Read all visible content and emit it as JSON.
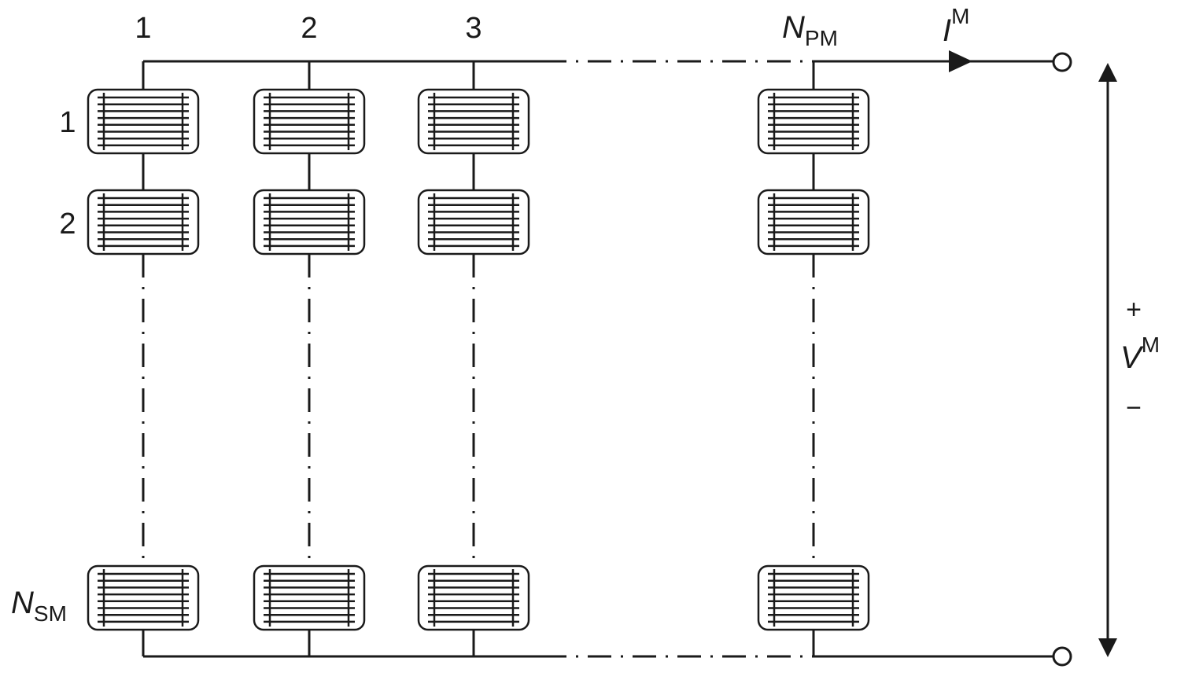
{
  "column_labels": [
    "1",
    "2",
    "3"
  ],
  "row_labels": [
    "1",
    "2"
  ],
  "npm_label": {
    "symbol": "N",
    "subscript": "PM"
  },
  "nsm_label": {
    "symbol": "N",
    "subscript": "SM"
  },
  "current_label": {
    "symbol": "I",
    "superscript": "M"
  },
  "voltage_label": {
    "plus": "+",
    "symbol": "V",
    "superscript": "M",
    "minus": "−"
  }
}
